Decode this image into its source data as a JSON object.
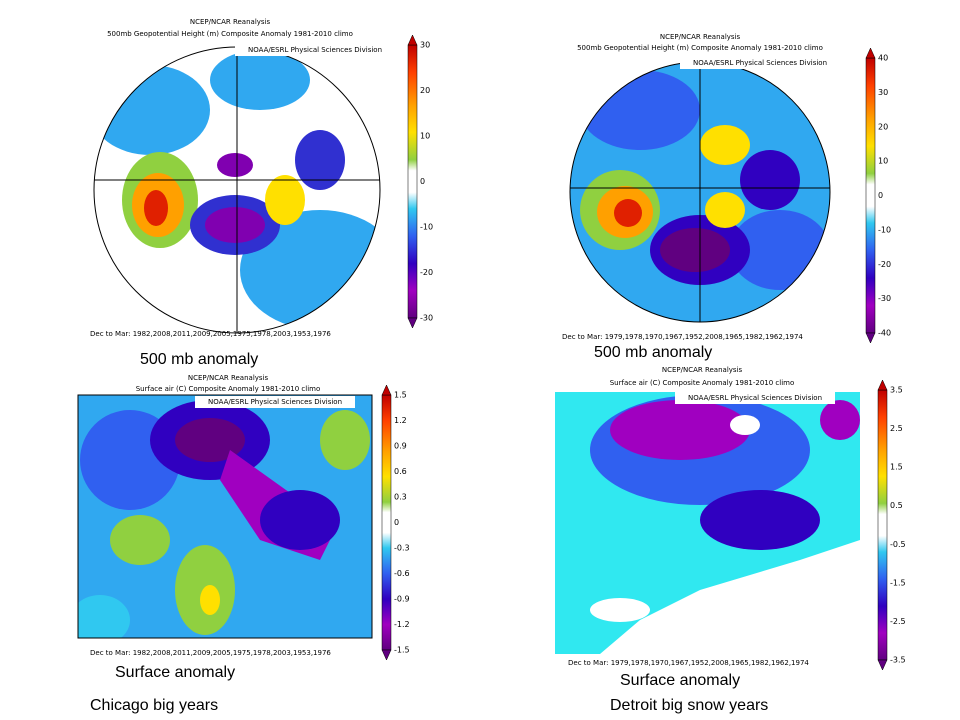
{
  "panels": [
    {
      "source": "NCEP/NCAR Reanalysis",
      "title": "500mb Geopotential Height (m) Composite Anomaly 1981-2010 climo",
      "credit": "NOAA/ESRL Physical Sciences Division",
      "colorbar": [
        "30",
        "20",
        "10",
        "0",
        "-10",
        "-20",
        "-30"
      ],
      "footer": "Dec to Mar: 1982,2008,2011,2009,2005,1975,1978,2003,1953,1976",
      "caption": "500 mb anomaly"
    },
    {
      "source": "NCEP/NCAR Reanalysis",
      "title": "500mb Geopotential Height (m) Composite Anomaly 1981-2010 climo",
      "credit": "NOAA/ESRL Physical Sciences Division",
      "colorbar": [
        "40",
        "30",
        "20",
        "10",
        "0",
        "-10",
        "-20",
        "-30",
        "-40"
      ],
      "footer": "Dec to Mar: 1979,1978,1970,1967,1952,2008,1965,1982,1962,1974",
      "caption": "500 mb anomaly"
    },
    {
      "source": "NCEP/NCAR Reanalysis",
      "title": "Surface air (C) Composite Anomaly 1981-2010 climo",
      "credit": "NOAA/ESRL Physical Sciences Division",
      "colorbar": [
        "1.5",
        "1.2",
        "0.9",
        "0.6",
        "0.3",
        "0",
        "-0.3",
        "-0.6",
        "-0.9",
        "-1.2",
        "-1.5"
      ],
      "footer": "Dec to Mar: 1982,2008,2011,2009,2005,1975,1978,2003,1953,1976",
      "caption": "Surface anomaly"
    },
    {
      "source": "NCEP/NCAR Reanalysis",
      "title": "Surface air (C) Composite Anomaly 1981-2010 climo",
      "credit": "NOAA/ESRL Physical Sciences Division",
      "colorbar": [
        "3.5",
        "2.5",
        "1.5",
        "0.5",
        "-0.5",
        "-1.5",
        "-2.5",
        "-3.5"
      ],
      "footer": "Dec to Mar: 1979,1978,1970,1967,1952,2008,1965,1982,1962,1974",
      "caption": "Surface anomaly"
    }
  ],
  "labels": [
    "Chicago big years",
    "Detroit big snow years"
  ]
}
